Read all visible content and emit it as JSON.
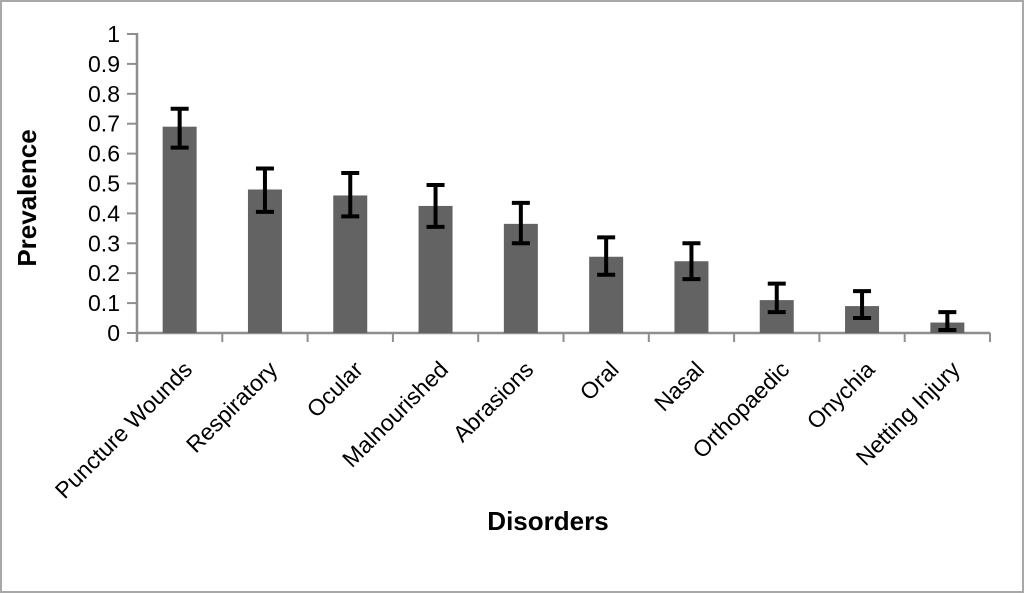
{
  "figure": {
    "background_color": "#ffffff",
    "frame_border_color": "#a8a8a8"
  },
  "chart_data": {
    "type": "bar",
    "title": "",
    "xlabel": "Disorders",
    "ylabel": "Prevalence",
    "categories": [
      "Puncture Wounds",
      "Respiratory",
      "Ocular",
      "Malnourished",
      "Abrasions",
      "Oral",
      "Nasal",
      "Orthopaedic",
      "Onychia",
      "Netting Injury"
    ],
    "values": [
      0.69,
      0.48,
      0.46,
      0.425,
      0.365,
      0.255,
      0.24,
      0.11,
      0.09,
      0.035
    ],
    "error_low": [
      0.62,
      0.405,
      0.39,
      0.355,
      0.3,
      0.195,
      0.18,
      0.07,
      0.05,
      0.01
    ],
    "error_high": [
      0.75,
      0.55,
      0.535,
      0.495,
      0.435,
      0.32,
      0.3,
      0.165,
      0.14,
      0.07
    ],
    "ylim": [
      0,
      1
    ],
    "ytick_values": [
      0,
      0.1,
      0.2,
      0.3,
      0.4,
      0.5,
      0.6,
      0.7,
      0.8,
      0.9,
      1
    ],
    "ytick_labels": [
      "0",
      "0.1",
      "0.2",
      "0.3",
      "0.4",
      "0.5",
      "0.6",
      "0.7",
      "0.8",
      "0.9",
      "1"
    ],
    "bar_color": "#636363",
    "axis_color": "#8e8e8e",
    "error_bar_color": "#000000",
    "grid": false,
    "legend": false
  }
}
